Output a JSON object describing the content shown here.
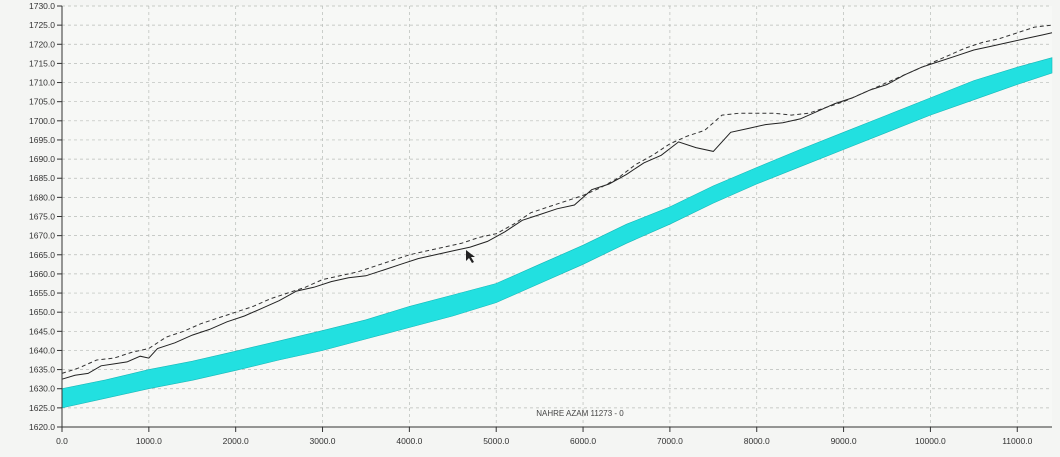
{
  "chart_data": {
    "type": "area",
    "annotation": "NAHRE AZAM 11273 - 0",
    "xlim": [
      0,
      11400
    ],
    "ylim": [
      1620,
      1730
    ],
    "x_ticks": [
      {
        "value": 0,
        "label": "0.0"
      },
      {
        "value": 1000,
        "label": "1000.0"
      },
      {
        "value": 2000,
        "label": "2000.0"
      },
      {
        "value": 3000,
        "label": "3000.0"
      },
      {
        "value": 4000,
        "label": "4000.0"
      },
      {
        "value": 5000,
        "label": "5000.0"
      },
      {
        "value": 6000,
        "label": "6000.0"
      },
      {
        "value": 7000,
        "label": "7000.0"
      },
      {
        "value": 8000,
        "label": "8000.0"
      },
      {
        "value": 9000,
        "label": "9000.0"
      },
      {
        "value": 10000,
        "label": "10000.0"
      },
      {
        "value": 11000,
        "label": "11000.0"
      }
    ],
    "y_ticks": [
      {
        "value": 1620,
        "label": "1620.0"
      },
      {
        "value": 1625,
        "label": "1625.0"
      },
      {
        "value": 1630,
        "label": "1630.0"
      },
      {
        "value": 1635,
        "label": "1635.0"
      },
      {
        "value": 1640,
        "label": "1640.0"
      },
      {
        "value": 1645,
        "label": "1645.0"
      },
      {
        "value": 1650,
        "label": "1650.0"
      },
      {
        "value": 1655,
        "label": "1655.0"
      },
      {
        "value": 1660,
        "label": "1660.0"
      },
      {
        "value": 1665,
        "label": "1665.0"
      },
      {
        "value": 1670,
        "label": "1670.0"
      },
      {
        "value": 1675,
        "label": "1675.0"
      },
      {
        "value": 1680,
        "label": "1680.0"
      },
      {
        "value": 1685,
        "label": "1685.0"
      },
      {
        "value": 1690,
        "label": "1690.0"
      },
      {
        "value": 1695,
        "label": "1695.0"
      },
      {
        "value": 1700,
        "label": "1700.0"
      },
      {
        "value": 1705,
        "label": "1705.0"
      },
      {
        "value": 1710,
        "label": "1710.0"
      },
      {
        "value": 1715,
        "label": "1715.0"
      },
      {
        "value": 1720,
        "label": "1720.0"
      },
      {
        "value": 1725,
        "label": "1725.0"
      },
      {
        "value": 1730,
        "label": "1730.0"
      }
    ],
    "grid": true,
    "band": {
      "color": "#22e0e0",
      "x": [
        0,
        500,
        1000,
        1500,
        2000,
        2500,
        3000,
        3500,
        4000,
        4500,
        5000,
        5500,
        6000,
        6500,
        7000,
        7500,
        8000,
        8500,
        9000,
        9500,
        10000,
        10500,
        11000,
        11400
      ],
      "upper": [
        1630.0,
        1632.3,
        1635.0,
        1637.2,
        1639.8,
        1642.5,
        1645.2,
        1648.0,
        1651.5,
        1654.5,
        1657.5,
        1662.5,
        1667.5,
        1673.0,
        1677.5,
        1683.0,
        1687.8,
        1692.5,
        1697.0,
        1701.5,
        1706.0,
        1710.5,
        1714.0,
        1716.5
      ],
      "lower": [
        1625.0,
        1627.5,
        1630.0,
        1632.2,
        1634.8,
        1637.5,
        1640.0,
        1643.0,
        1646.0,
        1649.0,
        1652.5,
        1657.5,
        1662.5,
        1668.0,
        1673.0,
        1678.5,
        1683.5,
        1688.0,
        1692.5,
        1697.0,
        1701.5,
        1705.5,
        1709.5,
        1712.5
      ]
    },
    "series": [
      {
        "style": "solid",
        "color": "#222222",
        "x": [
          0,
          150,
          300,
          450,
          600,
          750,
          900,
          1000,
          1100,
          1300,
          1500,
          1700,
          1900,
          2100,
          2300,
          2500,
          2700,
          2900,
          3100,
          3300,
          3500,
          3700,
          3900,
          4100,
          4300,
          4500,
          4700,
          4900,
          5100,
          5300,
          5500,
          5700,
          5900,
          6100,
          6300,
          6500,
          6700,
          6900,
          7100,
          7300,
          7500,
          7700,
          7900,
          8100,
          8300,
          8500,
          8700,
          8900,
          9100,
          9300,
          9500,
          9700,
          9900,
          10100,
          10300,
          10500,
          10700,
          10900,
          11100,
          11300,
          11400
        ],
        "y": [
          1632.5,
          1633.5,
          1634.0,
          1636.0,
          1636.5,
          1637.0,
          1638.5,
          1638.0,
          1640.5,
          1642.0,
          1644.0,
          1645.5,
          1647.5,
          1649.0,
          1651.0,
          1653.0,
          1655.5,
          1656.5,
          1658.0,
          1659.0,
          1659.5,
          1661.0,
          1662.5,
          1664.0,
          1665.0,
          1666.0,
          1667.0,
          1668.5,
          1671.0,
          1674.0,
          1675.5,
          1677.0,
          1678.0,
          1682.0,
          1683.5,
          1686.0,
          1689.0,
          1691.0,
          1694.5,
          1693.0,
          1692.0,
          1697.0,
          1698.0,
          1699.0,
          1699.5,
          1700.5,
          1702.5,
          1704.5,
          1706.0,
          1708.0,
          1709.5,
          1712.0,
          1714.0,
          1715.5,
          1717.0,
          1718.5,
          1719.5,
          1720.5,
          1721.5,
          1722.5,
          1723.0
        ]
      },
      {
        "style": "dashed",
        "color": "#333333",
        "x": [
          0,
          200,
          400,
          600,
          800,
          1000,
          1200,
          1400,
          1600,
          1800,
          2000,
          2200,
          2400,
          2600,
          2800,
          3000,
          3200,
          3400,
          3600,
          3800,
          4000,
          4200,
          4400,
          4600,
          4800,
          5000,
          5200,
          5400,
          5600,
          5800,
          6000,
          6200,
          6400,
          6600,
          6800,
          7000,
          7200,
          7400,
          7600,
          7800,
          8000,
          8200,
          8400,
          8600,
          8800,
          9000,
          9200,
          9400,
          9600,
          9800,
          10000,
          10200,
          10400,
          10600,
          10800,
          11000,
          11200,
          11400
        ],
        "y": [
          1634.0,
          1635.5,
          1637.5,
          1638.0,
          1639.5,
          1640.5,
          1643.5,
          1645.0,
          1647.0,
          1648.5,
          1650.0,
          1651.5,
          1653.5,
          1655.0,
          1656.5,
          1658.5,
          1659.5,
          1660.5,
          1662.0,
          1663.5,
          1665.0,
          1666.0,
          1667.0,
          1668.0,
          1669.5,
          1670.5,
          1673.0,
          1676.0,
          1677.5,
          1679.0,
          1680.5,
          1682.5,
          1685.0,
          1688.5,
          1691.0,
          1694.0,
          1696.0,
          1697.5,
          1701.5,
          1702.0,
          1702.0,
          1702.0,
          1701.5,
          1702.0,
          1703.5,
          1705.0,
          1707.0,
          1709.0,
          1711.0,
          1713.0,
          1715.0,
          1717.0,
          1719.0,
          1720.5,
          1721.5,
          1723.0,
          1724.5,
          1725.0
        ]
      }
    ]
  }
}
